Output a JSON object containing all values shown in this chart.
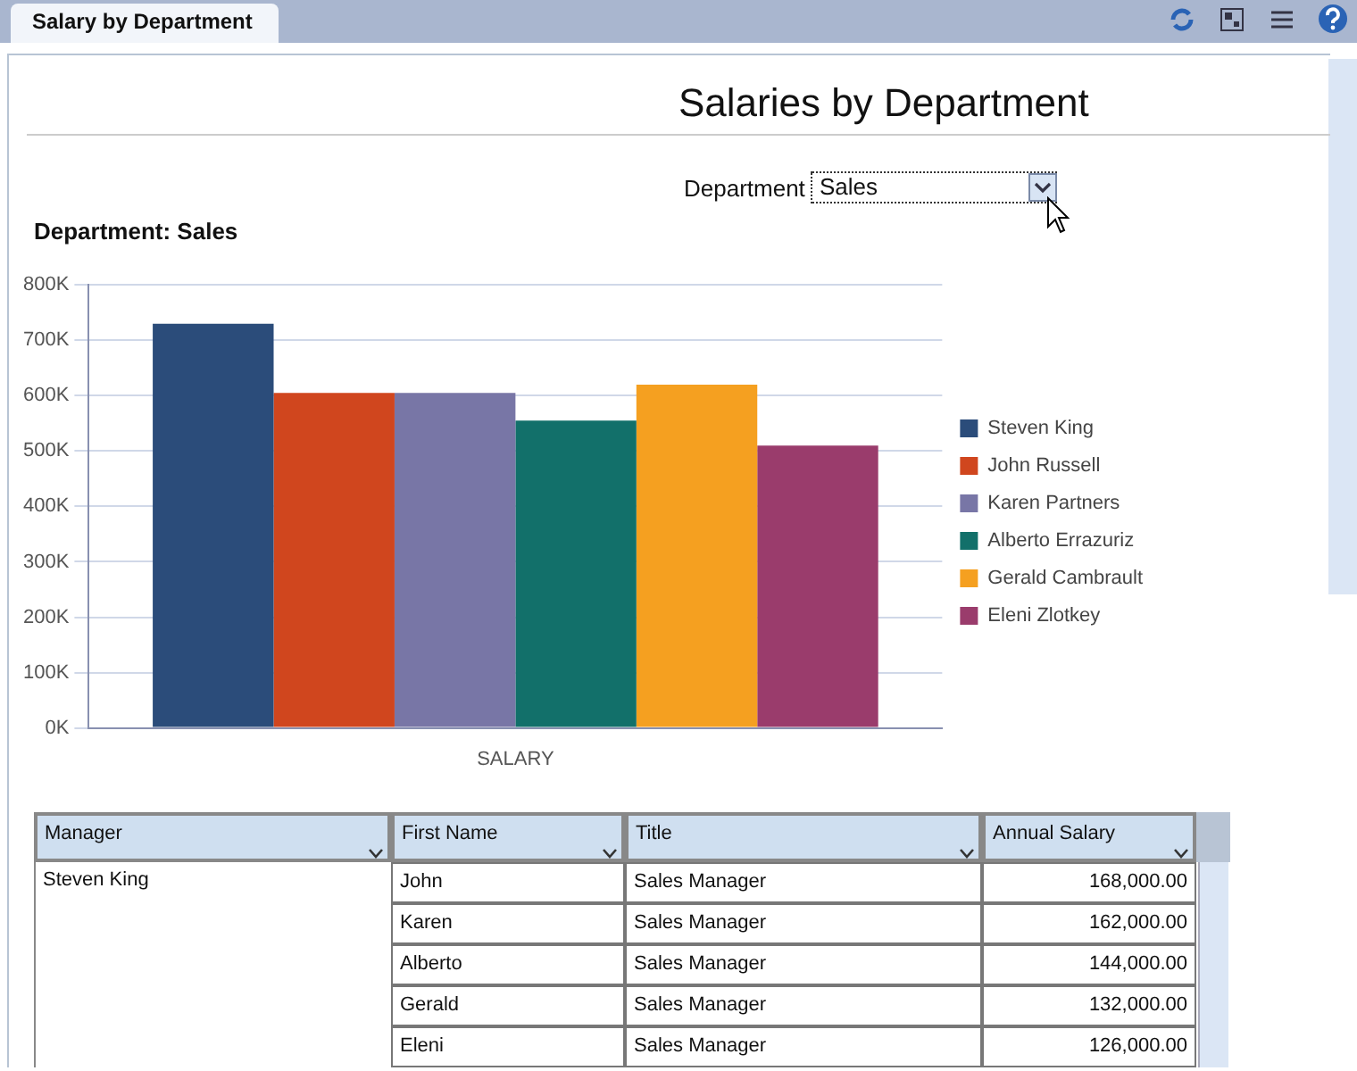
{
  "chart_data": [
    {
      "type": "bar",
      "title": "Department: Sales",
      "annotations": [
        "Salary by Department",
        "Salaries by Department",
        "Department",
        "Sales"
      ],
      "categories": [
        "SALARY"
      ],
      "series": [
        {
          "name": "Steven King",
          "color": "#2b4c7a",
          "values": [
            730000
          ]
        },
        {
          "name": "John Russell",
          "color": "#d0461e",
          "values": [
            605000
          ]
        },
        {
          "name": "Karen Partners",
          "color": "#7876a6",
          "values": [
            605000
          ]
        },
        {
          "name": "Alberto Errazuriz",
          "color": "#12706a",
          "values": [
            555000
          ]
        },
        {
          "name": "Gerald Cambrault",
          "color": "#f5a020",
          "values": [
            620000
          ]
        },
        {
          "name": "Eleni Zlotkey",
          "color": "#9a3c6c",
          "values": [
            510000
          ]
        }
      ],
      "ylim": [
        0,
        800000
      ],
      "yticks": [
        {
          "value": 0,
          "label": "0K"
        },
        {
          "value": 100000,
          "label": "100K"
        },
        {
          "value": 200000,
          "label": "200K"
        },
        {
          "value": 300000,
          "label": "300K"
        },
        {
          "value": 400000,
          "label": "400K"
        },
        {
          "value": 500000,
          "label": "500K"
        },
        {
          "value": 600000,
          "label": "600K"
        },
        {
          "value": 700000,
          "label": "700K"
        },
        {
          "value": 800000,
          "label": "800K"
        }
      ],
      "grid": "y",
      "legend": "right"
    },
    {
      "type": "other",
      "annotations": [
        "Manager",
        "First Name",
        "Title",
        "Annual Salary",
        "Steven King",
        "John",
        "Sales Manager",
        "168,000.00",
        "Karen",
        "Sales Manager",
        "162,000.00",
        "Alberto",
        "Sales Manager",
        "144,000.00",
        "Gerald",
        "Sales Manager",
        "132,000.00",
        "Eleni",
        "Sales Manager",
        "126,000.00"
      ]
    }
  ]
}
